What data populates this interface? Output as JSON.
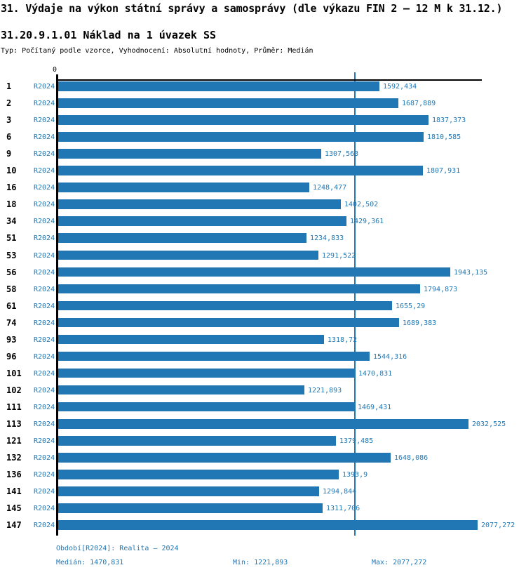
{
  "header": {
    "title": "31. Výdaje na výkon státní správy a samosprávy (dle výkazu FIN 2 – 12 M k 31.12.)",
    "subtitle": "31.20.9.1.01 Náklad na 1 úvazek SS",
    "meta": "Typ: Počítaný podle vzorce, Vyhodnocení: Absolutní hodnoty, Průměr: Medián"
  },
  "chart_data": {
    "type": "bar",
    "orientation": "horizontal",
    "series_label": "R2024",
    "title": "31.20.9.1.01 Náklad na 1 úvazek SS",
    "axis": {
      "zero_label": "0",
      "xlim": [
        0,
        2100
      ],
      "grid": "median-line-only"
    },
    "colors": {
      "bar": "#2077b4",
      "value_text": "#1f77b4",
      "axis": "#000000",
      "median_line": "#2077b4"
    },
    "legend_position": "per-row-left",
    "rows": [
      {
        "id": "1",
        "value": 1592.434,
        "label": "1592,434"
      },
      {
        "id": "2",
        "value": 1687.889,
        "label": "1687,889"
      },
      {
        "id": "3",
        "value": 1837.373,
        "label": "1837,373"
      },
      {
        "id": "6",
        "value": 1810.585,
        "label": "1810,585"
      },
      {
        "id": "9",
        "value": 1307.563,
        "label": "1307,563"
      },
      {
        "id": "10",
        "value": 1807.931,
        "label": "1807,931"
      },
      {
        "id": "16",
        "value": 1248.477,
        "label": "1248,477"
      },
      {
        "id": "18",
        "value": 1402.502,
        "label": "1402,502"
      },
      {
        "id": "34",
        "value": 1429.361,
        "label": "1429,361"
      },
      {
        "id": "51",
        "value": 1234.833,
        "label": "1234,833"
      },
      {
        "id": "53",
        "value": 1291.522,
        "label": "1291,522"
      },
      {
        "id": "56",
        "value": 1943.135,
        "label": "1943,135"
      },
      {
        "id": "58",
        "value": 1794.873,
        "label": "1794,873"
      },
      {
        "id": "61",
        "value": 1655.29,
        "label": "1655,29"
      },
      {
        "id": "74",
        "value": 1689.383,
        "label": "1689,383"
      },
      {
        "id": "93",
        "value": 1318.72,
        "label": "1318,72"
      },
      {
        "id": "96",
        "value": 1544.316,
        "label": "1544,316"
      },
      {
        "id": "101",
        "value": 1470.831,
        "label": "1470,831"
      },
      {
        "id": "102",
        "value": 1221.893,
        "label": "1221,893"
      },
      {
        "id": "111",
        "value": 1469.431,
        "label": "1469,431"
      },
      {
        "id": "113",
        "value": 2032.525,
        "label": "2032,525"
      },
      {
        "id": "121",
        "value": 1379.485,
        "label": "1379,485"
      },
      {
        "id": "132",
        "value": 1648.086,
        "label": "1648,086"
      },
      {
        "id": "136",
        "value": 1393.9,
        "label": "1393,9"
      },
      {
        "id": "141",
        "value": 1294.844,
        "label": "1294,844"
      },
      {
        "id": "145",
        "value": 1311.706,
        "label": "1311,706"
      },
      {
        "id": "147",
        "value": 2077.272,
        "label": "2077,272"
      }
    ],
    "stats": {
      "median": 1470.831,
      "min": 1221.893,
      "max": 2077.272
    }
  },
  "footer": {
    "period": "Období[R2024]: Realita – 2024",
    "median": "Medián: 1470,831",
    "min": "Min: 1221,893",
    "max": "Max: 2077,272"
  }
}
